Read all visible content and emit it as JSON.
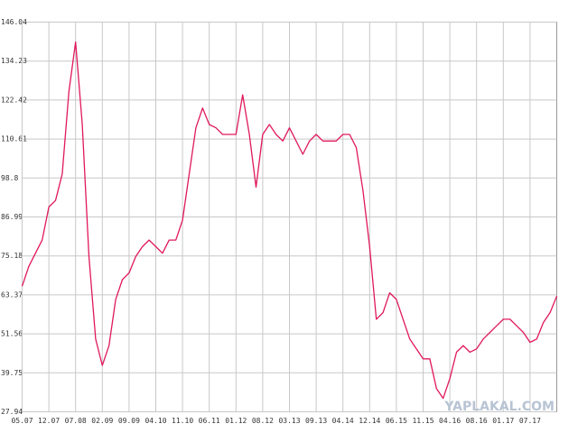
{
  "chart_data": {
    "type": "line",
    "watermark": "YAPLAKAL.COM",
    "x": [
      0,
      1,
      2,
      3,
      4,
      5,
      6,
      7,
      8,
      9,
      10,
      11,
      12,
      13,
      14,
      15,
      16,
      17,
      18,
      19,
      20,
      21,
      22,
      23,
      24,
      25,
      26,
      27,
      28,
      29,
      30,
      31,
      32,
      33,
      34,
      35,
      36,
      37,
      38,
      39,
      40,
      41,
      42,
      43,
      44,
      45,
      46,
      47,
      48,
      49,
      50,
      51,
      52,
      53,
      54,
      55,
      56,
      57,
      58,
      59,
      60,
      61,
      62,
      63,
      64,
      65,
      66,
      67,
      68,
      69,
      70,
      71,
      72,
      73,
      74,
      75,
      76,
      77,
      78,
      79,
      80
    ],
    "series": [
      {
        "color": "#e0185c",
        "values": [
          66,
          72,
          76,
          80,
          90,
          92,
          100,
          125,
          140,
          115,
          75,
          50,
          42,
          48,
          62,
          68,
          70,
          75,
          78,
          80,
          78,
          76,
          80,
          80,
          86,
          100,
          114,
          120,
          115,
          114,
          112,
          112,
          112,
          124,
          112,
          96,
          112,
          115,
          112,
          110,
          114,
          110,
          106,
          110,
          112,
          110,
          110,
          110,
          112,
          112,
          108,
          95,
          78,
          56,
          58,
          64,
          62,
          56,
          50,
          47,
          44,
          44,
          35,
          32,
          38,
          46,
          48,
          46,
          47,
          50,
          52,
          54,
          56,
          56,
          54,
          52,
          49,
          50,
          55,
          58,
          63
        ]
      }
    ],
    "xlim": [
      0,
      80
    ],
    "xticks": [
      {
        "value": 0,
        "label": "05.07"
      },
      {
        "value": 4,
        "label": "12.07"
      },
      {
        "value": 8,
        "label": "07.08"
      },
      {
        "value": 12,
        "label": "02.09"
      },
      {
        "value": 16,
        "label": "09.09"
      },
      {
        "value": 20,
        "label": "04.10"
      },
      {
        "value": 24,
        "label": "11.10"
      },
      {
        "value": 28,
        "label": "06.11"
      },
      {
        "value": 32,
        "label": "01.12"
      },
      {
        "value": 36,
        "label": "08.12"
      },
      {
        "value": 40,
        "label": "03.13"
      },
      {
        "value": 44,
        "label": "09.13"
      },
      {
        "value": 48,
        "label": "04.14"
      },
      {
        "value": 52,
        "label": "12.14"
      },
      {
        "value": 56,
        "label": "06.15"
      },
      {
        "value": 60,
        "label": "11.15"
      },
      {
        "value": 64,
        "label": "04.16"
      },
      {
        "value": 68,
        "label": "08.16"
      },
      {
        "value": 72,
        "label": "01.17"
      },
      {
        "value": 76,
        "label": "07.17"
      }
    ],
    "ylim": [
      27.94,
      146.04
    ],
    "yticks": [
      27.94,
      39.75,
      51.56,
      63.37,
      75.18,
      86.99,
      98.8,
      110.61,
      122.42,
      134.23,
      146.04
    ],
    "grid": true
  }
}
